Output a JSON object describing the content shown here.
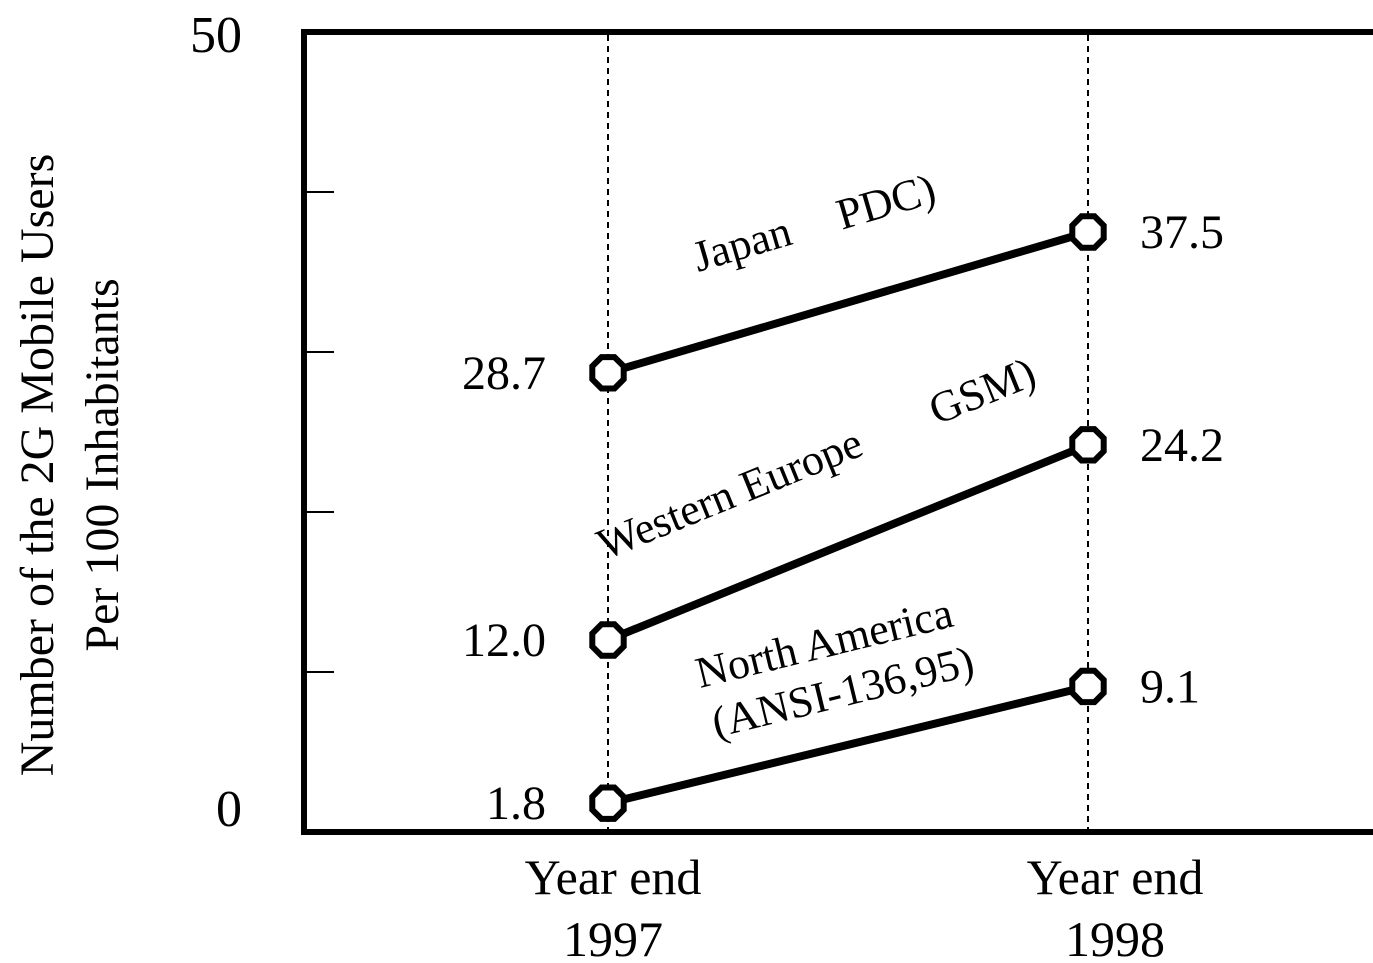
{
  "chart_data": {
    "type": "line",
    "categories": [
      [
        "Year end",
        "1997"
      ],
      [
        "Year end",
        "1998"
      ]
    ],
    "ylabel": [
      "Number of the 2G Mobile Users",
      "Per 100 Inhabitants"
    ],
    "ylim": [
      0,
      50
    ],
    "yticks": [
      0,
      10,
      20,
      30,
      40,
      50
    ],
    "ytick_labels": [
      {
        "value": 0,
        "label": "0"
      },
      {
        "value": 50,
        "label": "50"
      }
    ],
    "grid": "vertical dashed lines at categories",
    "series": [
      {
        "name": [
          "Japan",
          "PDC)"
        ],
        "values": [
          28.7,
          37.5
        ],
        "value_labels": [
          "28.7",
          "37.5"
        ]
      },
      {
        "name": [
          "Western Europe",
          "GSM)"
        ],
        "values": [
          12.0,
          24.2
        ],
        "value_labels": [
          "12.0",
          "24.2"
        ]
      },
      {
        "name": [
          "North America",
          "(ANSI-136,95)"
        ],
        "values": [
          1.8,
          9.1
        ],
        "value_labels": [
          "1.8",
          "9.1"
        ]
      }
    ],
    "colors": {
      "line": "#000000",
      "marker_fill": "#ffffff",
      "background": "#ffffff"
    }
  }
}
